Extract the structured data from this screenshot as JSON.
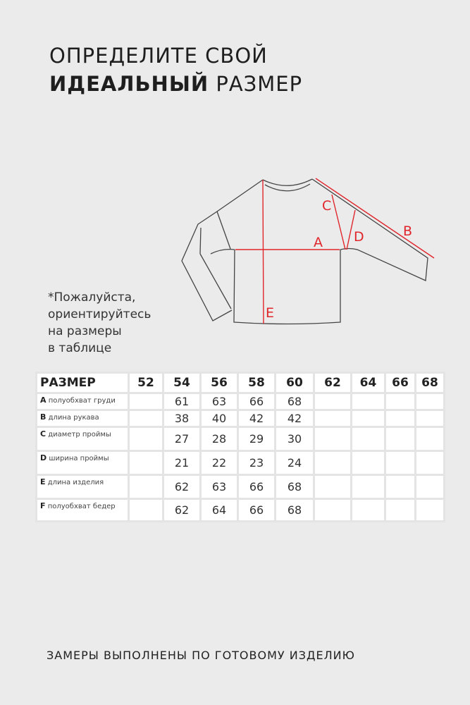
{
  "header": {
    "line1": "ОПРЕДЕЛИТЕ СВОЙ",
    "line2_bold": "ИДЕАЛЬНЫЙ",
    "line2_rest": " РАЗМЕР"
  },
  "diagram": {
    "labels": {
      "a": "A",
      "b": "B",
      "c": "C",
      "d": "D",
      "e": "E"
    },
    "measure_color": "#e0262b"
  },
  "note": [
    "*Пожалуйста,",
    "ориентируйтесь",
    "на размеры",
    "в таблице"
  ],
  "table": {
    "header_label": "РАЗМЕР",
    "sizes": [
      "52",
      "54",
      "56",
      "58",
      "60",
      "62",
      "64",
      "66",
      "68"
    ],
    "rows": [
      {
        "code": "A",
        "name": "полуобхват груди",
        "values": [
          "",
          "61",
          "63",
          "66",
          "68",
          "",
          "",
          "",
          ""
        ]
      },
      {
        "code": "B",
        "name": "длина рукава",
        "values": [
          "",
          "38",
          "40",
          "42",
          "42",
          "",
          "",
          "",
          ""
        ]
      },
      {
        "code": "C",
        "name": "диаметр проймы",
        "values": [
          "",
          "27",
          "28",
          "29",
          "30",
          "",
          "",
          "",
          ""
        ]
      },
      {
        "code": "D",
        "name": "ширина проймы",
        "values": [
          "",
          "21",
          "22",
          "23",
          "24",
          "",
          "",
          "",
          ""
        ]
      },
      {
        "code": "E",
        "name": "длина изделия",
        "values": [
          "",
          "62",
          "63",
          "66",
          "68",
          "",
          "",
          "",
          ""
        ]
      },
      {
        "code": "F",
        "name": "полуобхват бедер",
        "values": [
          "",
          "62",
          "64",
          "66",
          "68",
          "",
          "",
          "",
          ""
        ]
      }
    ]
  },
  "footer": "ЗАМЕРЫ ВЫПОЛНЕНЫ ПО ГОТОВОМУ ИЗДЕЛИЮ"
}
